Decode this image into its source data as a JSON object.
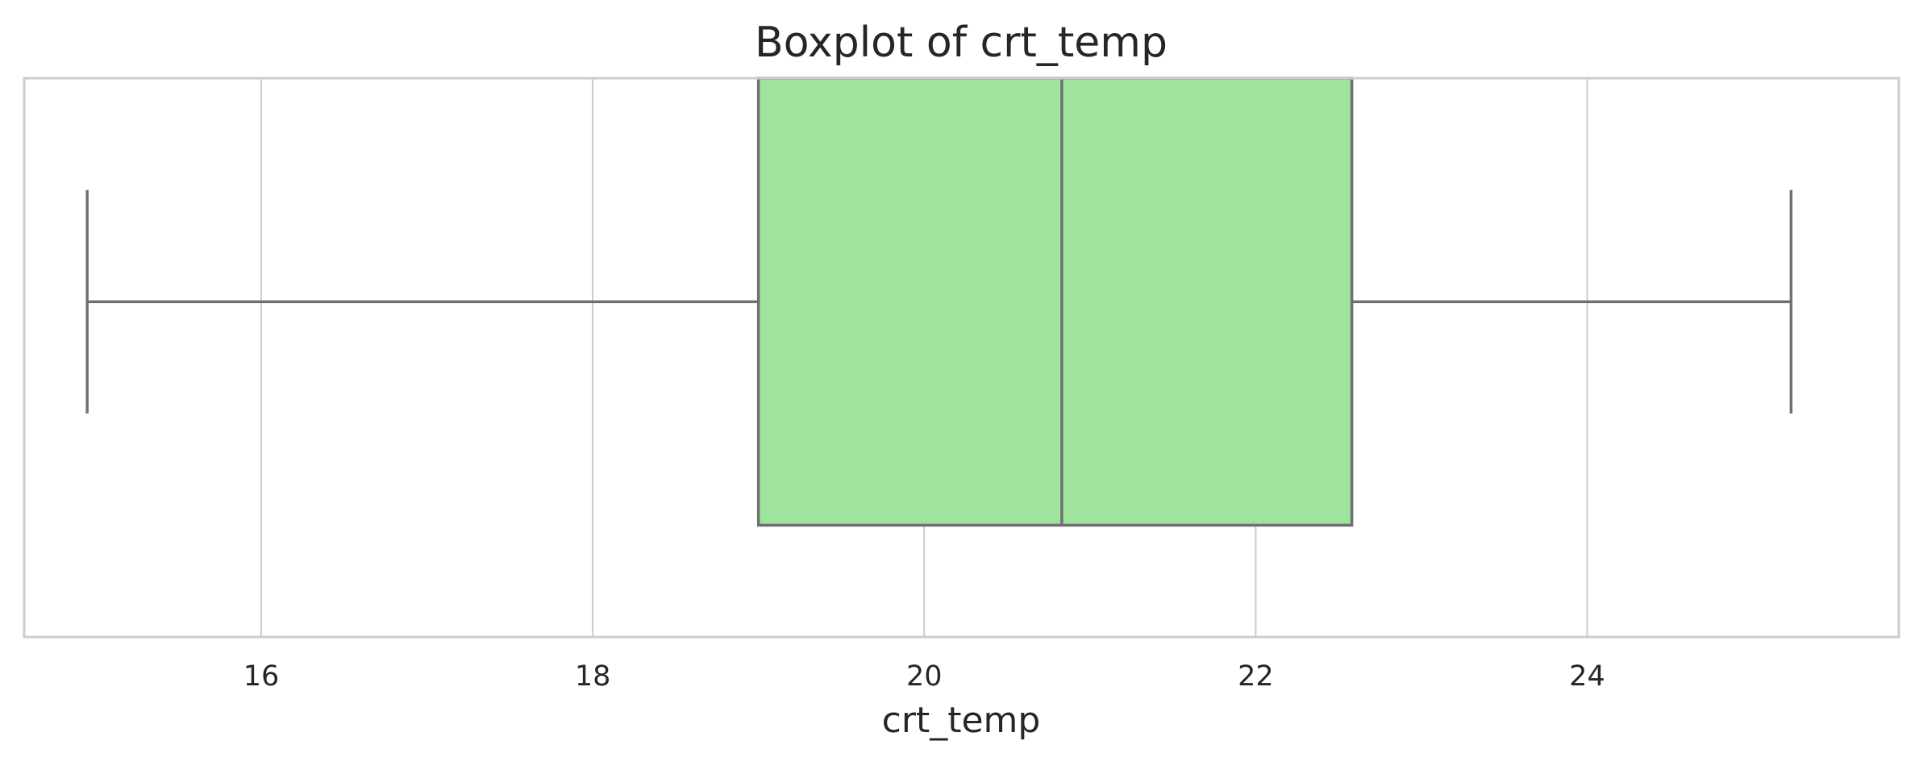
{
  "chart_data": {
    "type": "boxplot",
    "title": "Boxplot of crt_temp",
    "xlabel": "crt_temp",
    "ylabel": "",
    "xlim": [
      14.57,
      25.88
    ],
    "xticks": [
      16,
      18,
      20,
      22,
      24
    ],
    "grid": true,
    "box_color": "#9ee39e",
    "line_color": "#707070",
    "stats": {
      "whisker_low": 14.95,
      "q1": 19.0,
      "median": 20.83,
      "q3": 22.58,
      "whisker_high": 25.23
    }
  }
}
